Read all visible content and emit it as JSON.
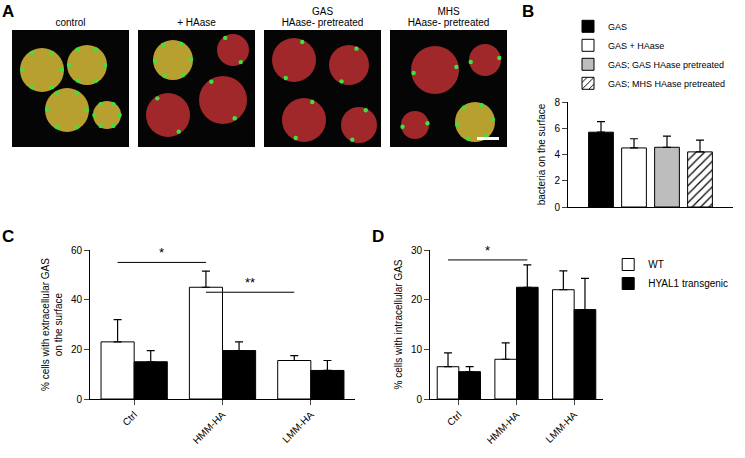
{
  "panel_a": {
    "label": "A",
    "images": [
      {
        "label": [
          "control"
        ]
      },
      {
        "label": [
          "+ HAase"
        ]
      },
      {
        "label": [
          "GAS",
          "HAase- pretreated"
        ]
      },
      {
        "label": [
          "MHS",
          "HAase- pretreated"
        ]
      }
    ]
  },
  "chart_data": [
    {
      "type": "bar",
      "panel": "B",
      "y_label": [
        "bacteria on the surface"
      ],
      "categories": [
        null
      ],
      "ylim": [
        0,
        8
      ],
      "yticks": [
        0,
        2,
        4,
        6,
        8
      ],
      "legend": "top",
      "tick_labels": "y",
      "series": [
        {
          "name": "GAS",
          "color": "#000000",
          "values": [
            5.7
          ],
          "errors": [
            0.8
          ]
        },
        {
          "name": "GAS + HAase",
          "color": "#ffffff",
          "values": [
            4.5
          ],
          "errors": [
            0.7
          ]
        },
        {
          "name": "GAS; GAS HAase pretreated",
          "color": "#bdbdbd",
          "values": [
            4.55
          ],
          "errors": [
            0.85
          ]
        },
        {
          "name": "GAS; MHS HAase pretreated",
          "color": "#ffffff",
          "marker": "hatched",
          "values": [
            4.2
          ],
          "errors": [
            0.9
          ]
        }
      ]
    },
    {
      "type": "bar",
      "panel": "C",
      "y_label": [
        "% cells with extracellular GAS",
        "on the surface"
      ],
      "categories": [
        "Ctrl",
        "HMM-HA",
        "LMM-HA"
      ],
      "ylim": [
        0,
        60
      ],
      "yticks": [
        0,
        20,
        40,
        60
      ],
      "series": [
        {
          "name": "WT",
          "color": "#ffffff",
          "values": [
            23,
            45,
            15.5
          ],
          "errors": [
            9,
            6.5,
            2
          ]
        },
        {
          "name": "HYAL1 transgenic",
          "color": "#000000",
          "values": [
            15,
            19.5,
            11.5
          ],
          "errors": [
            4.5,
            3.5,
            4
          ]
        }
      ],
      "significance": [
        {
          "text": "*",
          "from": [
            0,
            0
          ],
          "to": [
            1,
            0
          ],
          "y": 55
        },
        {
          "text": "**",
          "from": [
            1,
            0
          ],
          "to": [
            2,
            0
          ],
          "y": 43
        }
      ]
    },
    {
      "type": "bar",
      "panel": "D",
      "y_label": [
        "% cells with intracellular GAS"
      ],
      "categories": [
        "Ctrl",
        "HMM-HA",
        "LMM-HA"
      ],
      "ylim": [
        0,
        30
      ],
      "yticks": [
        0,
        10,
        20,
        30
      ],
      "legend": "right",
      "series": [
        {
          "name": "WT",
          "color": "#ffffff",
          "values": [
            6.5,
            8,
            22
          ],
          "errors": [
            2.8,
            3.3,
            3.8
          ]
        },
        {
          "name": "HYAL1 transgenic",
          "color": "#000000",
          "values": [
            5.5,
            22.5,
            18
          ],
          "errors": [
            1,
            4.5,
            6.3
          ]
        }
      ],
      "significance": [
        {
          "text": "*",
          "from": [
            0,
            0
          ],
          "to": [
            1,
            1
          ],
          "y": 28
        }
      ]
    }
  ]
}
